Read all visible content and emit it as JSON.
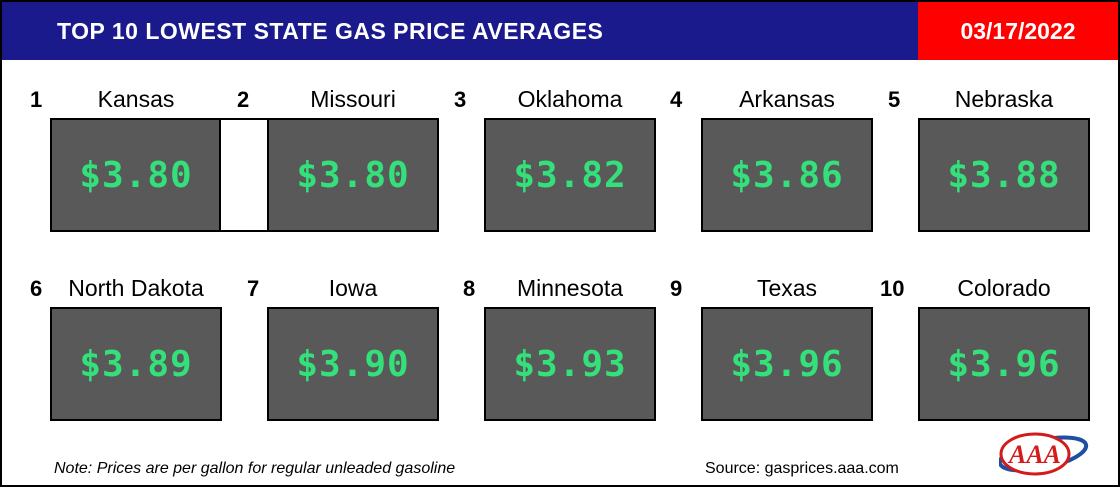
{
  "header": {
    "title": "TOP 10 LOWEST STATE GAS PRICE AVERAGES",
    "date": "03/17/2022"
  },
  "items": [
    {
      "rank": "1",
      "state": "Kansas",
      "price": "$3.80"
    },
    {
      "rank": "2",
      "state": "Missouri",
      "price": "$3.80"
    },
    {
      "rank": "3",
      "state": "Oklahoma",
      "price": "$3.82"
    },
    {
      "rank": "4",
      "state": "Arkansas",
      "price": "$3.86"
    },
    {
      "rank": "5",
      "state": "Nebraska",
      "price": "$3.88"
    },
    {
      "rank": "6",
      "state": "North Dakota",
      "price": "$3.89"
    },
    {
      "rank": "7",
      "state": "Iowa",
      "price": "$3.90"
    },
    {
      "rank": "8",
      "state": "Minnesota",
      "price": "$3.93"
    },
    {
      "rank": "9",
      "state": "Texas",
      "price": "$3.96"
    },
    {
      "rank": "10",
      "state": "Colorado",
      "price": "$3.96"
    }
  ],
  "footer": {
    "note": "Note: Prices are per gallon for regular unleaded gasoline",
    "source": "Source: gasprices.aaa.com",
    "logo_text": "AAA"
  },
  "colors": {
    "header_bg": "#1a1a8c",
    "date_bg": "#ff0000",
    "box_bg": "#595959",
    "price_text": "#33e07a"
  }
}
